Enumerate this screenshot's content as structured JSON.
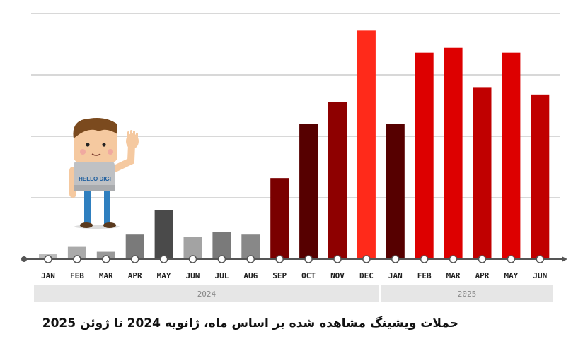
{
  "caption": "حملات ویشینگ مشاهده شده بر اساس ماه، ژانویه 2024 تا ژوئن 2025",
  "mascot": {
    "shirt_text": "HELLO DIGI"
  },
  "colors": {
    "grid": "#cccccc",
    "axis": "#555555",
    "group_band": "#e6e6e6",
    "group_text": "#888888",
    "tick_text": "#222222"
  },
  "chart_data": {
    "type": "bar",
    "title": "",
    "xlabel": "",
    "ylabel": "",
    "ylim": [
      0,
      100
    ],
    "grid": true,
    "gridlines": [
      0,
      25,
      50,
      75,
      100
    ],
    "categories": [
      "JAN",
      "FEB",
      "MAR",
      "APR",
      "MAY",
      "JUN",
      "JUL",
      "AUG",
      "SEP",
      "OCT",
      "NOV",
      "DEC",
      "JAN",
      "FEB",
      "MAR",
      "APR",
      "MAY",
      "JUN"
    ],
    "values": [
      2,
      5,
      3,
      10,
      20,
      9,
      11,
      10,
      33,
      55,
      64,
      93,
      55,
      84,
      86,
      70,
      84,
      67
    ],
    "bar_colors": [
      "#bbbbbb",
      "#aaaaaa",
      "#999999",
      "#7a7a7a",
      "#4a4a4a",
      "#a3a3a3",
      "#7a7a7a",
      "#888888",
      "#7a0000",
      "#560000",
      "#8e0000",
      "#ff2a1a",
      "#560000",
      "#dd0000",
      "#dd0000",
      "#c00000",
      "#dd0000",
      "#c00000"
    ],
    "groups": [
      {
        "label": "2024",
        "start": 0,
        "end": 11
      },
      {
        "label": "2025",
        "start": 12,
        "end": 17
      }
    ]
  }
}
